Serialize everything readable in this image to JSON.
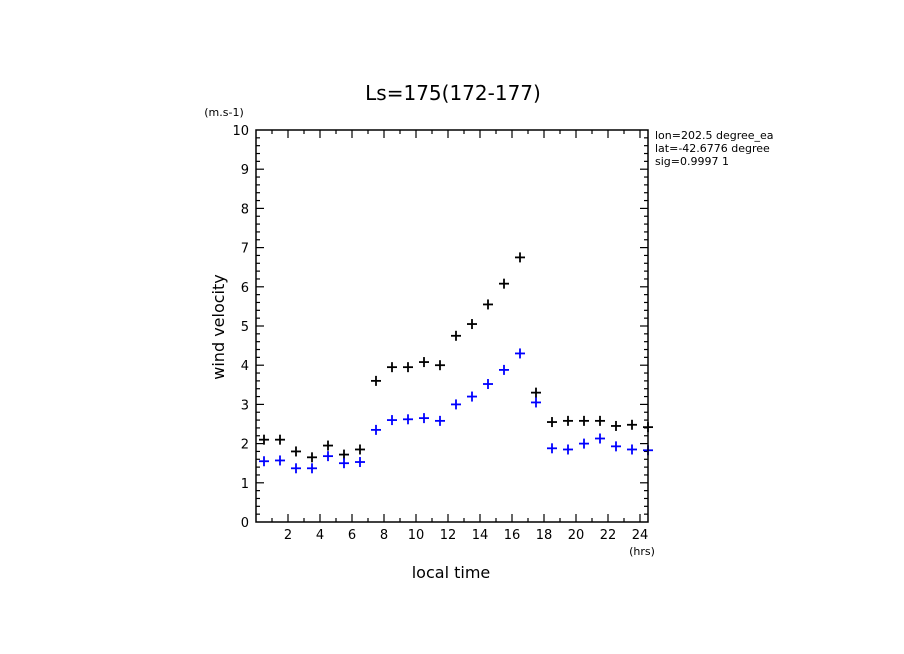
{
  "chart_data": {
    "type": "scatter",
    "title": "Ls=175(172-177)",
    "xlabel": "local time",
    "ylabel": "wind velocity",
    "xunit": "(hrs)",
    "yunit": "(m.s-1)",
    "xlim": [
      0,
      24.5
    ],
    "ylim": [
      0,
      10
    ],
    "xticks": [
      2,
      4,
      6,
      8,
      10,
      12,
      14,
      16,
      18,
      20,
      22,
      24
    ],
    "yticks": [
      0,
      1,
      2,
      3,
      4,
      5,
      6,
      7,
      8,
      9,
      10
    ],
    "info": [
      "lon=202.5 degree_ea",
      "lat=-42.6776 degree",
      "sig=0.9997 1"
    ],
    "marker": "+",
    "series": [
      {
        "color": "#000000",
        "x": [
          0.5,
          1.5,
          2.5,
          3.5,
          4.5,
          5.5,
          6.5,
          7.5,
          8.5,
          9.5,
          10.5,
          11.5,
          12.5,
          13.5,
          14.5,
          15.5,
          16.5,
          17.5,
          18.5,
          19.5,
          20.5,
          21.5,
          22.5,
          23.5,
          24.5
        ],
        "y": [
          2.1,
          2.1,
          1.8,
          1.65,
          1.95,
          1.72,
          1.85,
          3.6,
          3.95,
          3.95,
          4.08,
          4.0,
          4.75,
          5.05,
          5.55,
          6.08,
          6.75,
          3.3,
          2.55,
          2.58,
          2.58,
          2.58,
          2.45,
          2.48,
          2.42
        ]
      },
      {
        "color": "#0000ff",
        "x": [
          0.5,
          1.5,
          2.5,
          3.5,
          4.5,
          5.5,
          6.5,
          7.5,
          8.5,
          9.5,
          10.5,
          11.5,
          12.5,
          13.5,
          14.5,
          15.5,
          16.5,
          17.5,
          18.5,
          19.5,
          20.5,
          21.5,
          22.5,
          23.5,
          24.5
        ],
        "y": [
          1.55,
          1.57,
          1.37,
          1.37,
          1.68,
          1.5,
          1.53,
          2.35,
          2.6,
          2.62,
          2.65,
          2.58,
          3.0,
          3.2,
          3.52,
          3.88,
          4.3,
          3.05,
          1.88,
          1.85,
          2.0,
          2.13,
          1.93,
          1.85,
          1.83
        ]
      }
    ]
  }
}
